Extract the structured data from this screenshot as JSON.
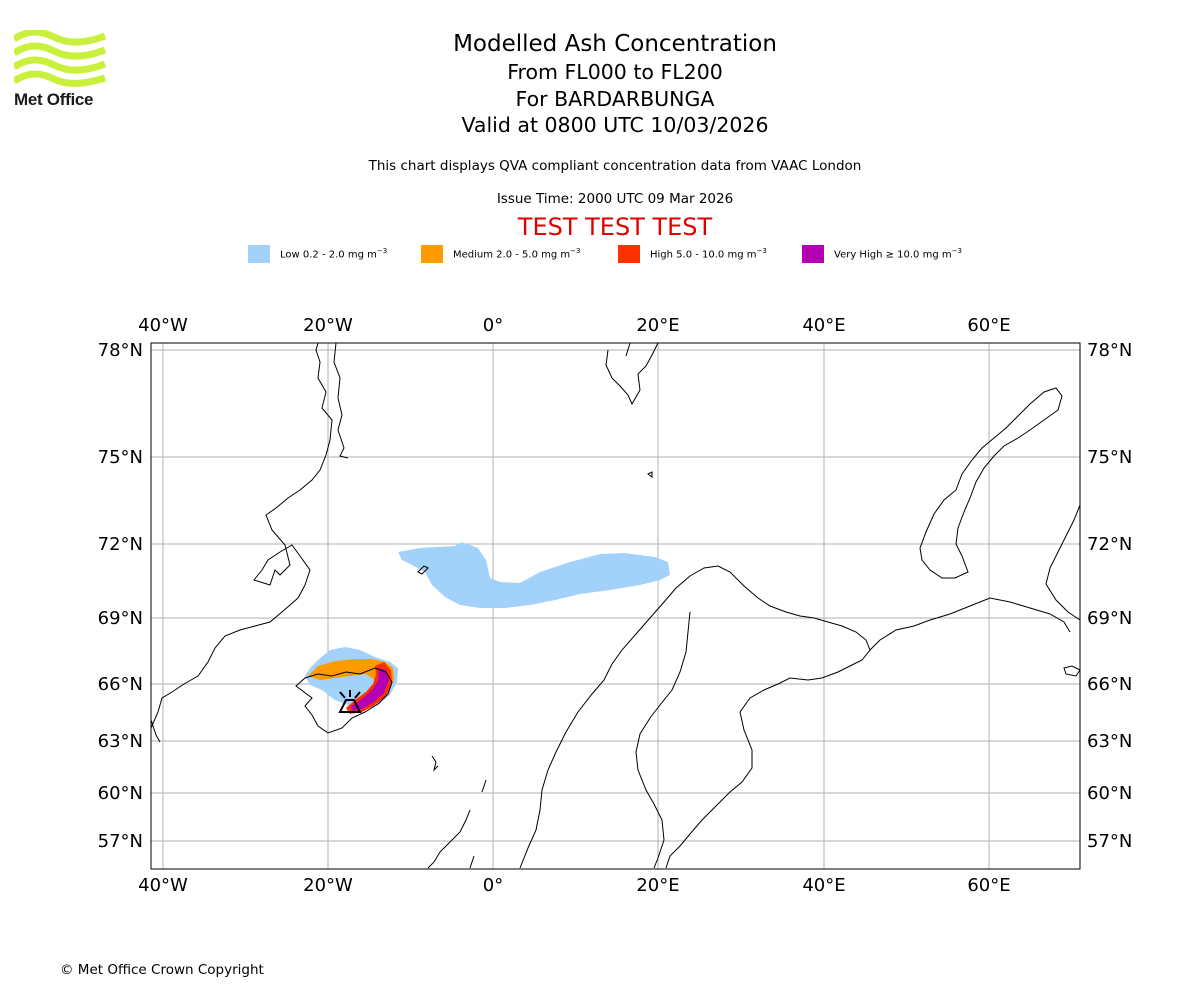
{
  "logo": {
    "text": "Met Office",
    "color": "#c8f03c"
  },
  "title": {
    "main": "Modelled Ash Concentration",
    "levels": "From FL000 to FL200",
    "volcano": "For BARDARBUNGA",
    "valid": "Valid at 0800 UTC 10/03/2026"
  },
  "description": "This chart displays QVA compliant concentration data from VAAC London",
  "issue_time": "Issue Time: 2000 UTC 09 Mar 2026",
  "test_banner": "TEST TEST TEST",
  "legend": [
    {
      "label": "Low 0.2 - 2.0 mg m",
      "sup": "−3",
      "color": "#a2d2fa"
    },
    {
      "label": "Medium 2.0 - 5.0 mg m",
      "sup": "−3",
      "color": "#ff9a00"
    },
    {
      "label": "High 5.0 - 10.0 mg m",
      "sup": "−3",
      "color": "#ff3000"
    },
    {
      "label": "Very High  ≥  10.0 mg m",
      "sup": "−3",
      "color": "#b400b4"
    }
  ],
  "map": {
    "lon_ticks": [
      "40°W",
      "20°W",
      "0°",
      "20°E",
      "40°E",
      "60°E"
    ],
    "lat_ticks": [
      "78°N",
      "75°N",
      "72°N",
      "69°N",
      "66°N",
      "63°N",
      "60°N",
      "57°N"
    ],
    "extent": {
      "lon": [
        -41.5,
        71
      ],
      "lat": [
        55,
        78
      ]
    },
    "volcano_marker": "volcano-icon"
  },
  "copyright": "© Met Office Crown Copyright"
}
